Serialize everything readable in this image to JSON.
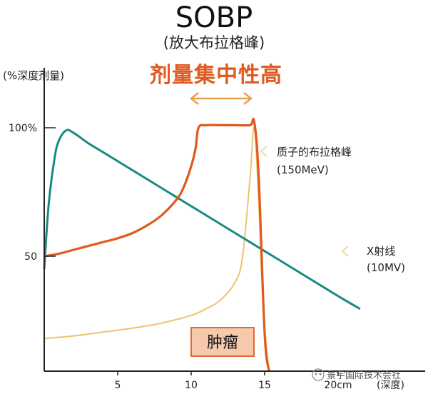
{
  "header": {
    "title": "SOBP",
    "subtitle": "(放大布拉格峰)",
    "ylabel": "(%深度剂量)",
    "headline": "剂量集中性高"
  },
  "annotations": {
    "proton_line1": "质子的布拉格峰",
    "proton_line2": "(150MeV)",
    "xray_line1": "X射线",
    "xray_line2": "(10MV)",
    "tumor": "肿瘤",
    "watermark": "景宇国际技术会社"
  },
  "colors": {
    "sobp": "#e05a1f",
    "xray": "#1a8a82",
    "proton": "#eec46a",
    "arrow": "#e8a24a",
    "tumor_fill": "#f6c9ad",
    "tumor_border": "#e06a30",
    "axis": "#222222"
  },
  "chart_data": {
    "type": "line",
    "x_unit": "cm",
    "xlim": [
      0,
      20
    ],
    "ylim": [
      0,
      100
    ],
    "x_ticks": [
      "5",
      "10",
      "15",
      "20cm"
    ],
    "x_tick_values": [
      5,
      10,
      15,
      20
    ],
    "y_ticks": [
      "50",
      "100%"
    ],
    "y_tick_values": [
      50,
      100
    ],
    "x_axis_suffix": "(深度)",
    "series": [
      {
        "id": "sobp",
        "points": [
          [
            0,
            50
          ],
          [
            1,
            51
          ],
          [
            2,
            52.5
          ],
          [
            3,
            54
          ],
          [
            4,
            55.5
          ],
          [
            5,
            57
          ],
          [
            6,
            59
          ],
          [
            7,
            62
          ],
          [
            8,
            66
          ],
          [
            9,
            72
          ],
          [
            9.5,
            77
          ],
          [
            10,
            85
          ],
          [
            10.3,
            92
          ],
          [
            10.5,
            100
          ],
          [
            11,
            101
          ],
          [
            12,
            101
          ],
          [
            13,
            101
          ],
          [
            14,
            101
          ],
          [
            14.3,
            102
          ],
          [
            14.6,
            80
          ],
          [
            15,
            20
          ],
          [
            15.3,
            0
          ]
        ]
      },
      {
        "id": "xray",
        "points": [
          [
            0,
            45
          ],
          [
            0.3,
            70
          ],
          [
            0.7,
            88
          ],
          [
            1,
            95
          ],
          [
            1.5,
            99
          ],
          [
            2,
            98
          ],
          [
            3,
            94
          ],
          [
            4,
            90.5
          ],
          [
            6,
            83.5
          ],
          [
            8,
            76.5
          ],
          [
            10,
            69.5
          ],
          [
            12,
            62.5
          ],
          [
            14,
            55.5
          ],
          [
            16,
            48.5
          ],
          [
            18,
            41.5
          ],
          [
            20,
            34.5
          ],
          [
            21.5,
            29.5
          ]
        ]
      },
      {
        "id": "proton",
        "points": [
          [
            0,
            18
          ],
          [
            2,
            19
          ],
          [
            4,
            20.5
          ],
          [
            6,
            22
          ],
          [
            8,
            24
          ],
          [
            10,
            27
          ],
          [
            11,
            29.5
          ],
          [
            12,
            33
          ],
          [
            13,
            40
          ],
          [
            13.5,
            50
          ],
          [
            14,
            80
          ],
          [
            14.3,
            100
          ],
          [
            14.6,
            70
          ],
          [
            14.9,
            30
          ],
          [
            15.3,
            0
          ]
        ]
      }
    ],
    "band": {
      "from": 10.5,
      "to": 14.3
    }
  }
}
